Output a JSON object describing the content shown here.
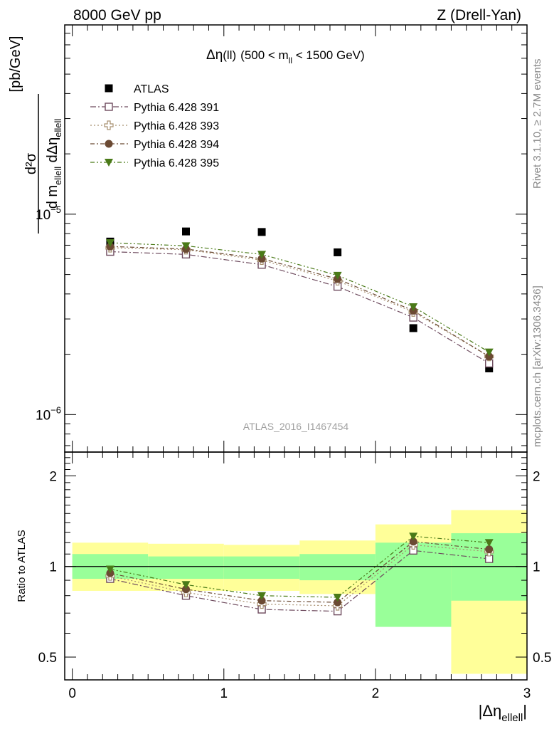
{
  "header": {
    "left": "8000 GeV pp",
    "right": "Z (Drell-Yan)"
  },
  "side_labels": {
    "rivet": "Rivet 3.1.10, ≥ 2.7M events",
    "mcplots": "mcplots.cern.ch [arXiv:1306.3436]"
  },
  "watermark": "ATLAS_2016_I1467454",
  "colors": {
    "data": "#000000",
    "p391": "#6e4b5e",
    "p393": "#a89070",
    "p394": "#6b4a33",
    "p395": "#4a7a18",
    "band_inner": "#99ff99",
    "band_outer": "#ffff99"
  },
  "chart_data": [
    {
      "type": "scatter",
      "panel": "main",
      "annotation": {
        "prefix": "Δη",
        "paren": "(ll)",
        "range_pre": "(500 < m",
        "range_sub": "ll",
        "range_post": " < 1500 GeV)"
      },
      "ylabel": {
        "num": "d²σ",
        "den_a": "d m",
        "den_a_sub": "ellell",
        "den_b": " dΔη",
        "den_b_sub": "ellell",
        "unit": "[pb/GeV]"
      },
      "xlabel": {
        "main": "|Δη",
        "sub": "ellell",
        "end": "|"
      },
      "ylim": [
        6.5e-07,
        8.8e-05
      ],
      "yscale": "log",
      "xlim": [
        -0.05,
        3.0
      ],
      "y_ticks_labeled": [
        {
          "value": 1e-05,
          "base": "10",
          "exp": "−5"
        },
        {
          "value": 1e-06,
          "base": "10",
          "exp": "−6"
        }
      ],
      "x": [
        0.25,
        0.75,
        1.25,
        1.75,
        2.25,
        2.75
      ],
      "x_err": 0.25,
      "legend": [
        "ATLAS",
        "Pythia 6.428 391",
        "Pythia 6.428 393",
        "Pythia 6.428 394",
        "Pythia 6.428 395"
      ],
      "series": [
        {
          "name": "ATLAS",
          "values": [
            7.3e-06,
            8.2e-06,
            8.15e-06,
            6.45e-06,
            2.7e-06,
            1.7e-06
          ]
        },
        {
          "name": "Pythia 6.428 391",
          "values": [
            6.5e-06,
            6.3e-06,
            5.6e-06,
            4.35e-06,
            3.05e-06,
            1.8e-06
          ]
        },
        {
          "name": "Pythia 6.428 393",
          "values": [
            6.8e-06,
            6.65e-06,
            5.9e-06,
            4.65e-06,
            3.25e-06,
            1.95e-06
          ]
        },
        {
          "name": "Pythia 6.428 394",
          "values": [
            6.9e-06,
            6.7e-06,
            6e-06,
            4.75e-06,
            3.3e-06,
            1.95e-06
          ]
        },
        {
          "name": "Pythia 6.428 395",
          "values": [
            7.2e-06,
            6.95e-06,
            6.3e-06,
            4.95e-06,
            3.45e-06,
            2.05e-06
          ]
        }
      ]
    },
    {
      "type": "scatter",
      "panel": "ratio",
      "ylabel": "Ratio to ATLAS",
      "ylim": [
        0.42,
        2.4
      ],
      "yscale": "log",
      "xlim": [
        -0.05,
        3.0
      ],
      "x_ticks": [
        0,
        1,
        2,
        3
      ],
      "y_ticks": [
        0.5,
        1,
        2
      ],
      "x": [
        0.25,
        0.75,
        1.25,
        1.75,
        2.25,
        2.75
      ],
      "bands": [
        {
          "x": [
            0.0,
            0.5
          ],
          "inner": [
            0.91,
            1.1
          ],
          "outer": [
            0.83,
            1.2
          ]
        },
        {
          "x": [
            0.5,
            1.0
          ],
          "inner": [
            0.91,
            1.08
          ],
          "outer": [
            0.83,
            1.19
          ]
        },
        {
          "x": [
            1.0,
            1.5
          ],
          "inner": [
            0.91,
            1.08
          ],
          "outer": [
            0.83,
            1.18
          ]
        },
        {
          "x": [
            1.5,
            2.0
          ],
          "inner": [
            0.9,
            1.1
          ],
          "outer": [
            0.81,
            1.22
          ]
        },
        {
          "x": [
            2.0,
            2.5
          ],
          "inner": [
            0.63,
            1.2
          ],
          "outer": [
            0.64,
            1.38
          ]
        },
        {
          "x": [
            2.5,
            3.0
          ],
          "inner": [
            0.77,
            1.29
          ],
          "outer": [
            0.44,
            1.54
          ]
        }
      ],
      "series": [
        {
          "name": "Pythia 6.428 391",
          "values": [
            0.91,
            0.8,
            0.72,
            0.71,
            1.13,
            1.06
          ]
        },
        {
          "name": "Pythia 6.428 393",
          "values": [
            0.93,
            0.82,
            0.75,
            0.74,
            1.18,
            1.12
          ]
        },
        {
          "name": "Pythia 6.428 394",
          "values": [
            0.95,
            0.84,
            0.77,
            0.76,
            1.21,
            1.14
          ]
        },
        {
          "name": "Pythia 6.428 395",
          "values": [
            0.98,
            0.87,
            0.8,
            0.79,
            1.26,
            1.2
          ]
        }
      ]
    }
  ]
}
